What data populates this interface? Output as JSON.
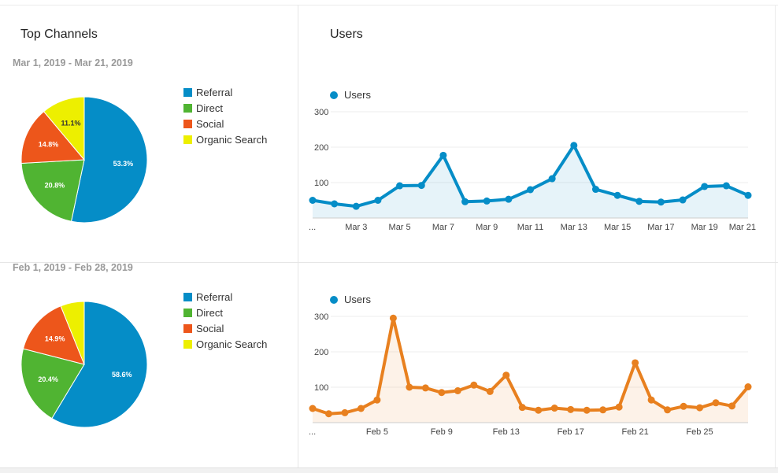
{
  "colors": {
    "referral": "#058dc7",
    "direct": "#50b432",
    "social": "#ed561b",
    "organic": "#edef00",
    "users_blue": "#058dc7",
    "users_orange": "#e8801f"
  },
  "left_top": {
    "title": "Top Channels",
    "date_range": "Mar 1, 2019 - Mar 21, 2019"
  },
  "left_bottom": {
    "date_range": "Feb 1, 2019 - Feb 28, 2019"
  },
  "legend": [
    "Referral",
    "Direct",
    "Social",
    "Organic Search"
  ],
  "right_top": {
    "title": "Users",
    "legend_label": "Users"
  },
  "right_bottom": {
    "legend_label": "Users"
  },
  "chart_data": [
    {
      "type": "pie",
      "title": "Top Channels",
      "subtitle": "Mar 1, 2019 - Mar 21, 2019",
      "categories": [
        "Referral",
        "Direct",
        "Social",
        "Organic Search"
      ],
      "values": [
        53.3,
        20.8,
        14.8,
        11.1
      ],
      "labels": [
        "53.3%",
        "20.8%",
        "14.8%",
        "11.1%"
      ],
      "legend_position": "right"
    },
    {
      "type": "pie",
      "subtitle": "Feb 1, 2019 - Feb 28, 2019",
      "categories": [
        "Referral",
        "Direct",
        "Social",
        "Organic Search"
      ],
      "values": [
        58.6,
        20.4,
        14.9,
        6.1
      ],
      "labels": [
        "58.6%",
        "20.4%",
        "14.9%",
        ""
      ],
      "legend_position": "right"
    },
    {
      "type": "area",
      "title": "Users",
      "series": [
        {
          "name": "Users",
          "values": [
            50,
            40,
            33,
            50,
            91,
            92,
            177,
            46,
            48,
            53,
            80,
            111,
            205,
            81,
            64,
            47,
            45,
            51,
            89,
            91,
            64
          ]
        }
      ],
      "x_tick_labels": [
        "...",
        "Mar 3",
        "Mar 5",
        "Mar 7",
        "Mar 9",
        "Mar 11",
        "Mar 13",
        "Mar 15",
        "Mar 17",
        "Mar 19",
        "Mar 21"
      ],
      "y_tick_labels": [
        "100",
        "200",
        "300"
      ],
      "ylim": [
        0,
        300
      ],
      "legend_position": "top-left"
    },
    {
      "type": "area",
      "series": [
        {
          "name": "Users",
          "values": [
            40,
            25,
            28,
            40,
            64,
            295,
            100,
            98,
            85,
            90,
            106,
            88,
            134,
            43,
            35,
            41,
            37,
            35,
            36,
            44,
            169,
            64,
            36,
            46,
            42,
            56,
            47,
            101
          ]
        }
      ],
      "x_tick_labels": [
        "...",
        "Feb 5",
        "Feb 9",
        "Feb 13",
        "Feb 17",
        "Feb 21",
        "Feb 25"
      ],
      "y_tick_labels": [
        "100",
        "200",
        "300"
      ],
      "ylim": [
        0,
        300
      ],
      "legend_position": "top-left"
    }
  ]
}
